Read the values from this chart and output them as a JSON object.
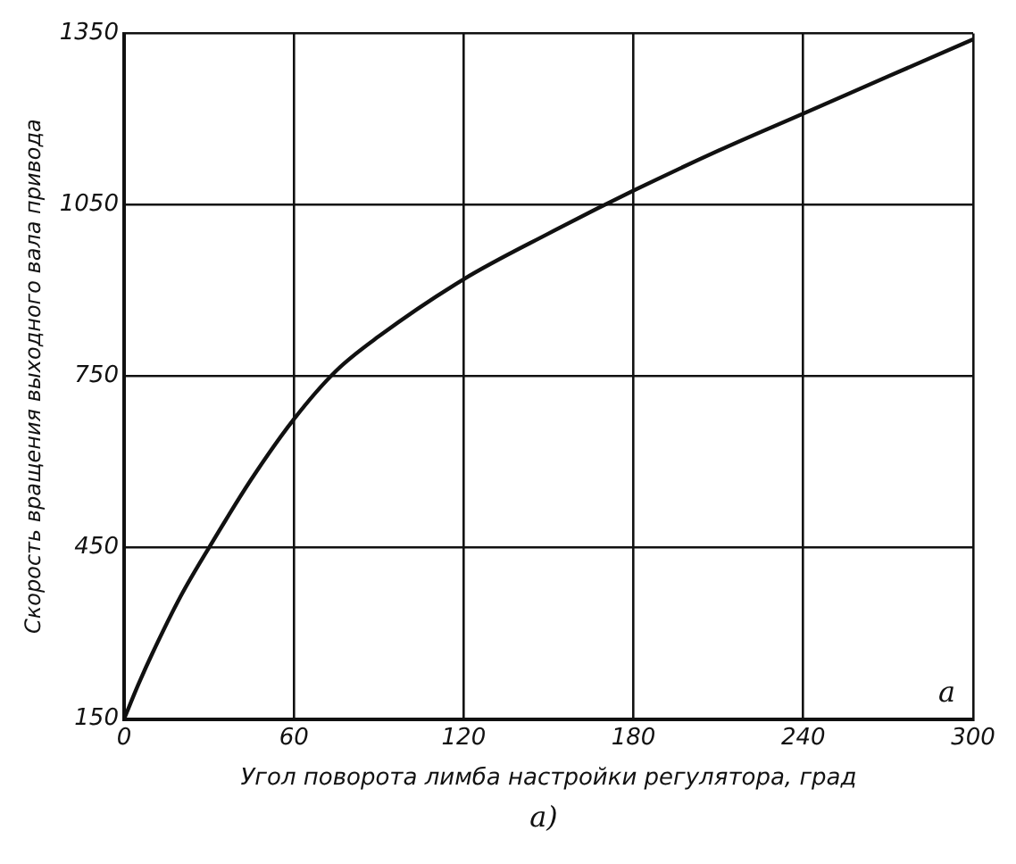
{
  "chart_data": {
    "type": "line",
    "xlabel": "Угол поворота лимба настройки регулятора, град",
    "ylabel": "Скорость вращения выходного вала привода",
    "x": [
      0,
      5,
      10,
      20,
      30,
      45,
      60,
      75,
      90,
      120,
      150,
      180,
      210,
      240,
      270,
      300
    ],
    "series": [
      {
        "color": "#111111",
        "values": [
          150,
          210,
          265,
          365,
          450,
          570,
          675,
          760,
          820,
          920,
          1000,
          1075,
          1145,
          1210,
          1275,
          1340
        ]
      }
    ],
    "xlim": [
      0,
      300
    ],
    "xticks": [
      0,
      60,
      120,
      180,
      240,
      300
    ],
    "ylim": [
      150,
      1350
    ],
    "yticks": [
      150,
      450,
      750,
      1050,
      1350
    ],
    "grid": true,
    "legend": false,
    "marker": "none",
    "line_style": "solid",
    "annotations": [
      "a",
      "a)"
    ]
  }
}
